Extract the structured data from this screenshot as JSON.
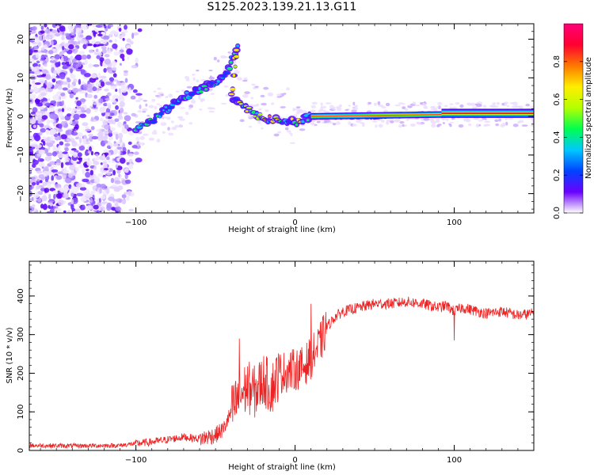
{
  "title": "S125.2023.139.21.13.G11",
  "chart_data": [
    {
      "type": "heatmap",
      "xlabel": "Height of straight line (km)",
      "ylabel": "Frequency (Hz)",
      "xlim": [
        -167,
        150
      ],
      "ylim": [
        -25,
        24
      ],
      "x_ticks": [
        -100,
        0,
        100
      ],
      "y_ticks": [
        -20,
        -10,
        0,
        10,
        20
      ],
      "colorbar": {
        "label": "Normalized spectral amplitude",
        "range": [
          0,
          1
        ],
        "ticks": [
          0.0,
          0.2,
          0.4,
          0.6,
          0.8
        ],
        "colors": [
          "#ffffff",
          "#6a00ff",
          "#0044ff",
          "#00c8ff",
          "#00ff50",
          "#b4ff00",
          "#ffee00",
          "#ff7800",
          "#ff0030",
          "#ff0078"
        ]
      },
      "ridge": [
        {
          "x": -100,
          "y": -3
        },
        {
          "x": -90,
          "y": -1
        },
        {
          "x": -80,
          "y": 2
        },
        {
          "x": -70,
          "y": 5
        },
        {
          "x": -60,
          "y": 7
        },
        {
          "x": -50,
          "y": 9
        },
        {
          "x": -42,
          "y": 12
        },
        {
          "x": -36,
          "y": 18
        },
        {
          "x": -40,
          "y": 5
        },
        {
          "x": -30,
          "y": 2
        },
        {
          "x": -20,
          "y": -0.5
        },
        {
          "x": -10,
          "y": -1
        },
        {
          "x": 0,
          "y": -1.5
        },
        {
          "x": 10,
          "y": 0
        },
        {
          "x": 20,
          "y": 0
        },
        {
          "x": 50,
          "y": 0
        },
        {
          "x": 80,
          "y": 0.5
        },
        {
          "x": 92,
          "y": 0.5
        },
        {
          "x": 95,
          "y": 0.8
        },
        {
          "x": 150,
          "y": 0.8
        }
      ]
    },
    {
      "type": "line",
      "xlabel": "Height of straight line (km)",
      "ylabel": "SNR (10 * v/v)",
      "xlim": [
        -167,
        150
      ],
      "ylim": [
        0,
        490
      ],
      "x_ticks": [
        -100,
        0,
        100
      ],
      "y_ticks": [
        0,
        100,
        200,
        300,
        400
      ],
      "color": "#ee2222",
      "series": [
        {
          "x": [
            -167,
            -140,
            -110,
            -100,
            -90,
            -80,
            -70,
            -60,
            -50,
            -45,
            -40,
            -35,
            -30,
            -25,
            -20,
            -15,
            -10,
            -5,
            0,
            5,
            10,
            15,
            20,
            25,
            30,
            40,
            50,
            60,
            70,
            80,
            90,
            95,
            100,
            105,
            110,
            120,
            130,
            140,
            150
          ],
          "y": [
            13,
            12,
            13,
            18,
            22,
            28,
            35,
            30,
            40,
            55,
            100,
            140,
            165,
            150,
            185,
            160,
            200,
            205,
            210,
            215,
            240,
            270,
            320,
            345,
            360,
            370,
            380,
            380,
            385,
            380,
            370,
            375,
            360,
            370,
            365,
            355,
            360,
            350,
            355
          ]
        }
      ],
      "annotations": [
        {
          "x": 100,
          "y": 490
        },
        {
          "x": 100,
          "y": 285
        },
        {
          "x": 10,
          "y": 380
        },
        {
          "x": -35,
          "y": 290
        }
      ]
    }
  ]
}
